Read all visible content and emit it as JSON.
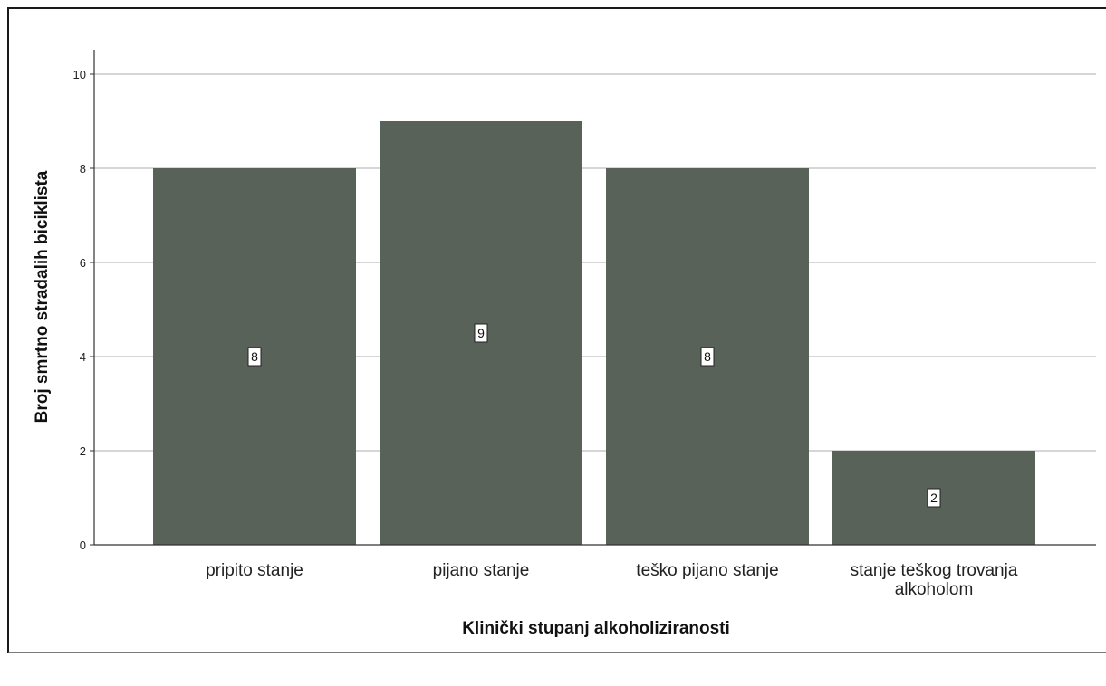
{
  "chart_data": {
    "type": "bar",
    "categories": [
      "pripito stanje",
      "pijano stanje",
      "teško pijano stanje",
      "stanje teškog trovanja alkoholom"
    ],
    "category_lines": [
      [
        "pripito stanje"
      ],
      [
        "pijano stanje"
      ],
      [
        "teško pijano stanje"
      ],
      [
        "stanje teškog trovanja",
        "alkoholom"
      ]
    ],
    "values": [
      8,
      9,
      8,
      2
    ],
    "data_labels": [
      "8",
      "9",
      "8",
      "2"
    ],
    "xlabel": "Klinički stupanj alkoholiziranosti",
    "ylabel": "Broj smrtno stradalih biciklista",
    "ylim": [
      0,
      10
    ],
    "yticks": [
      0,
      2,
      4,
      6,
      8,
      10
    ],
    "grid": true,
    "legend": "none",
    "bar_color": "#596259",
    "grid_color": "#c8c8c8"
  }
}
